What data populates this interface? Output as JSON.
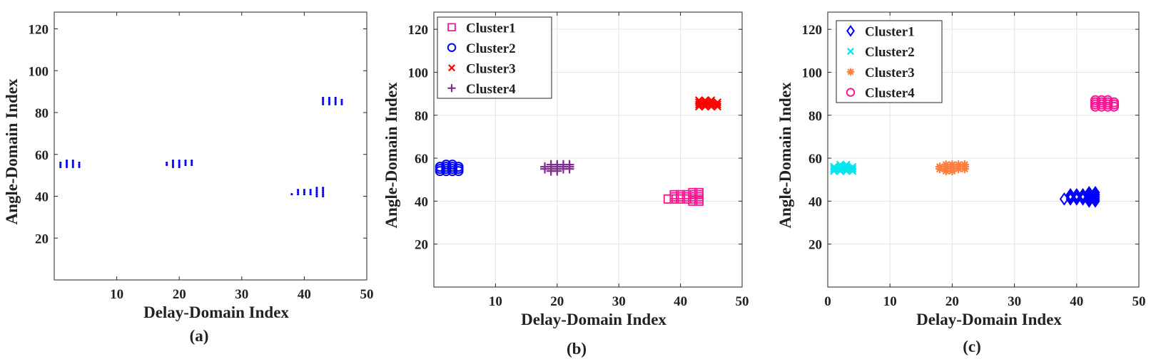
{
  "chart_data": [
    {
      "type": "scatter",
      "panel_label": "(a)",
      "xlabel": "Delay-Domain Index",
      "ylabel": "Angle-Domain Index",
      "xlim": [
        0,
        50
      ],
      "ylim": [
        0,
        128
      ],
      "xticks": [
        10,
        20,
        30,
        40,
        50
      ],
      "yticks": [
        20,
        40,
        60,
        80,
        100,
        120
      ],
      "grid": false,
      "legend": null,
      "series": [
        {
          "marker": "dot",
          "color": "#0000ff",
          "points": [
            [
              1,
              54
            ],
            [
              1,
              55
            ],
            [
              1,
              56
            ],
            [
              2,
              54
            ],
            [
              2,
              55
            ],
            [
              2,
              56
            ],
            [
              2,
              57
            ],
            [
              3,
              54
            ],
            [
              3,
              55
            ],
            [
              3,
              56
            ],
            [
              3,
              57
            ],
            [
              4,
              54
            ],
            [
              4,
              55
            ],
            [
              4,
              56
            ],
            [
              18,
              55
            ],
            [
              18,
              56
            ],
            [
              19,
              54
            ],
            [
              19,
              55
            ],
            [
              19,
              56
            ],
            [
              19,
              57
            ],
            [
              20,
              54
            ],
            [
              20,
              55
            ],
            [
              20,
              56
            ],
            [
              20,
              57
            ],
            [
              21,
              55
            ],
            [
              21,
              56
            ],
            [
              21,
              57
            ],
            [
              22,
              55
            ],
            [
              22,
              56
            ],
            [
              22,
              57
            ],
            [
              43,
              84
            ],
            [
              43,
              85
            ],
            [
              43,
              86
            ],
            [
              43,
              87
            ],
            [
              44,
              84
            ],
            [
              44,
              85
            ],
            [
              44,
              86
            ],
            [
              44,
              87
            ],
            [
              45,
              84
            ],
            [
              45,
              85
            ],
            [
              45,
              86
            ],
            [
              45,
              87
            ],
            [
              46,
              84
            ],
            [
              46,
              85
            ],
            [
              46,
              86
            ],
            [
              38,
              41
            ],
            [
              39,
              41
            ],
            [
              39,
              42
            ],
            [
              39,
              43
            ],
            [
              40,
              41
            ],
            [
              40,
              42
            ],
            [
              40,
              43
            ],
            [
              41,
              41
            ],
            [
              41,
              42
            ],
            [
              41,
              43
            ],
            [
              42,
              40
            ],
            [
              42,
              41
            ],
            [
              42,
              42
            ],
            [
              42,
              43
            ],
            [
              42,
              44
            ],
            [
              43,
              40
            ],
            [
              43,
              41
            ],
            [
              43,
              42
            ],
            [
              43,
              43
            ],
            [
              43,
              44
            ]
          ]
        }
      ]
    },
    {
      "type": "scatter",
      "panel_label": "(b)",
      "xlabel": "Delay-Domain Index",
      "ylabel": "Angle-Domain Index",
      "xlim": [
        0,
        50
      ],
      "ylim": [
        0,
        128
      ],
      "xticks": [
        10,
        20,
        30,
        40,
        50
      ],
      "yticks": [
        20,
        40,
        60,
        80,
        100,
        120
      ],
      "grid": true,
      "legend": "top-left",
      "series": [
        {
          "name": "Cluster1",
          "marker": "square",
          "color": "#ff1493",
          "points": [
            [
              38,
              41
            ],
            [
              39,
              41
            ],
            [
              39,
              42
            ],
            [
              39,
              43
            ],
            [
              40,
              41
            ],
            [
              40,
              42
            ],
            [
              40,
              43
            ],
            [
              41,
              41
            ],
            [
              41,
              42
            ],
            [
              41,
              43
            ],
            [
              42,
              40
            ],
            [
              42,
              41
            ],
            [
              42,
              42
            ],
            [
              42,
              43
            ],
            [
              42,
              44
            ],
            [
              43,
              40
            ],
            [
              43,
              41
            ],
            [
              43,
              42
            ],
            [
              43,
              43
            ],
            [
              43,
              44
            ]
          ]
        },
        {
          "name": "Cluster2",
          "marker": "circle",
          "color": "#0000ff",
          "points": [
            [
              1,
              54
            ],
            [
              1,
              55
            ],
            [
              1,
              56
            ],
            [
              2,
              54
            ],
            [
              2,
              55
            ],
            [
              2,
              56
            ],
            [
              2,
              57
            ],
            [
              3,
              54
            ],
            [
              3,
              55
            ],
            [
              3,
              56
            ],
            [
              3,
              57
            ],
            [
              4,
              54
            ],
            [
              4,
              55
            ],
            [
              4,
              56
            ]
          ]
        },
        {
          "name": "Cluster3",
          "marker": "x",
          "color": "#ff0000",
          "points": [
            [
              43,
              84
            ],
            [
              43,
              85
            ],
            [
              43,
              86
            ],
            [
              43,
              87
            ],
            [
              44,
              84
            ],
            [
              44,
              85
            ],
            [
              44,
              86
            ],
            [
              44,
              87
            ],
            [
              45,
              84
            ],
            [
              45,
              85
            ],
            [
              45,
              86
            ],
            [
              45,
              87
            ],
            [
              46,
              84
            ],
            [
              46,
              85
            ],
            [
              46,
              86
            ]
          ]
        },
        {
          "name": "Cluster4",
          "marker": "plus",
          "color": "#7e2f8e",
          "points": [
            [
              18,
              55
            ],
            [
              18,
              56
            ],
            [
              19,
              54
            ],
            [
              19,
              55
            ],
            [
              19,
              56
            ],
            [
              19,
              57
            ],
            [
              20,
              54
            ],
            [
              20,
              55
            ],
            [
              20,
              56
            ],
            [
              20,
              57
            ],
            [
              21,
              55
            ],
            [
              21,
              56
            ],
            [
              21,
              57
            ],
            [
              22,
              55
            ],
            [
              22,
              56
            ],
            [
              22,
              57
            ]
          ]
        }
      ]
    },
    {
      "type": "scatter",
      "panel_label": "(c)",
      "xlabel": "Delay-Domain Index",
      "ylabel": "Angle-Domain Index",
      "xlim": [
        0,
        50
      ],
      "ylim": [
        0,
        128
      ],
      "xticks": [
        0,
        10,
        20,
        30,
        40,
        50
      ],
      "yticks": [
        20,
        40,
        60,
        80,
        100,
        120
      ],
      "grid": true,
      "legend": "top-left",
      "series": [
        {
          "name": "Cluster1",
          "marker": "diamond",
          "color": "#0000ff",
          "points": [
            [
              38,
              41
            ],
            [
              39,
              41
            ],
            [
              39,
              42
            ],
            [
              39,
              43
            ],
            [
              40,
              41
            ],
            [
              40,
              42
            ],
            [
              40,
              43
            ],
            [
              41,
              41
            ],
            [
              41,
              42
            ],
            [
              41,
              43
            ],
            [
              42,
              40
            ],
            [
              42,
              41
            ],
            [
              42,
              42
            ],
            [
              42,
              43
            ],
            [
              42,
              44
            ],
            [
              43,
              40
            ],
            [
              43,
              41
            ],
            [
              43,
              42
            ],
            [
              43,
              43
            ],
            [
              43,
              44
            ]
          ]
        },
        {
          "name": "Cluster2",
          "marker": "x",
          "color": "#00e5ee",
          "points": [
            [
              1,
              54
            ],
            [
              1,
              55
            ],
            [
              1,
              56
            ],
            [
              2,
              54
            ],
            [
              2,
              55
            ],
            [
              2,
              56
            ],
            [
              2,
              57
            ],
            [
              3,
              54
            ],
            [
              3,
              55
            ],
            [
              3,
              56
            ],
            [
              3,
              57
            ],
            [
              4,
              54
            ],
            [
              4,
              55
            ],
            [
              4,
              56
            ]
          ]
        },
        {
          "name": "Cluster3",
          "marker": "asterisk",
          "color": "#ff7f3f",
          "points": [
            [
              18,
              55
            ],
            [
              18,
              56
            ],
            [
              19,
              54
            ],
            [
              19,
              55
            ],
            [
              19,
              56
            ],
            [
              19,
              57
            ],
            [
              20,
              54
            ],
            [
              20,
              55
            ],
            [
              20,
              56
            ],
            [
              20,
              57
            ],
            [
              21,
              55
            ],
            [
              21,
              56
            ],
            [
              21,
              57
            ],
            [
              22,
              55
            ],
            [
              22,
              56
            ],
            [
              22,
              57
            ]
          ]
        },
        {
          "name": "Cluster4",
          "marker": "circle",
          "color": "#ff1493",
          "points": [
            [
              43,
              84
            ],
            [
              43,
              85
            ],
            [
              43,
              86
            ],
            [
              43,
              87
            ],
            [
              44,
              84
            ],
            [
              44,
              85
            ],
            [
              44,
              86
            ],
            [
              44,
              87
            ],
            [
              45,
              84
            ],
            [
              45,
              85
            ],
            [
              45,
              86
            ],
            [
              45,
              87
            ],
            [
              46,
              84
            ],
            [
              46,
              85
            ],
            [
              46,
              86
            ]
          ]
        }
      ]
    }
  ]
}
